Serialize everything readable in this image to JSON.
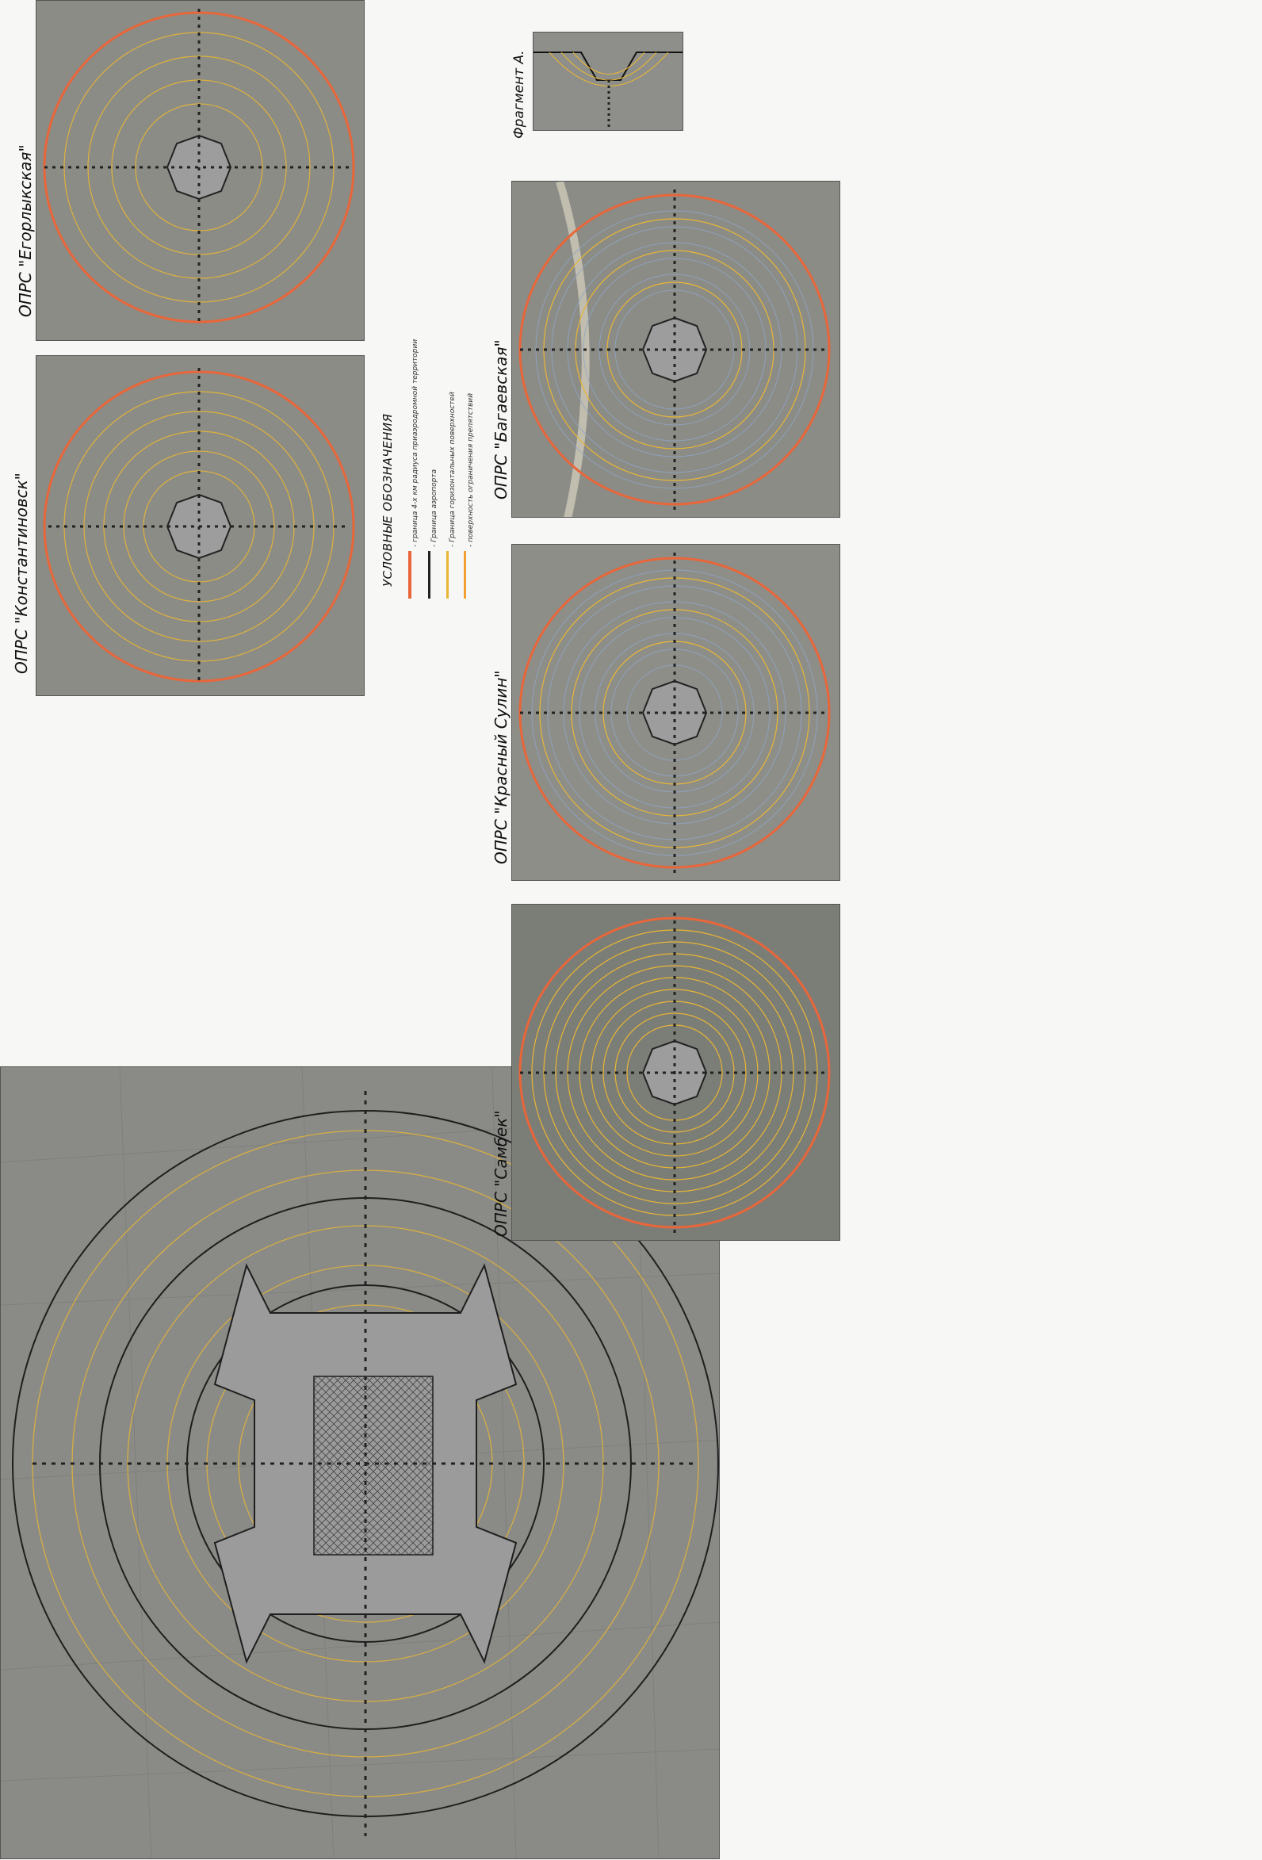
{
  "sheet": {
    "maps": [
      {
        "id": "egorlykskaya",
        "caption": "ОПРС \"Егорлыкская\""
      },
      {
        "id": "konstantinovsk",
        "caption": "ОПРС \"Константиновск\""
      },
      {
        "id": "bagaevskaya",
        "caption": "ОПРС \"Багаевская\""
      },
      {
        "id": "krasny-sulin",
        "caption": "ОПРС \"Красный Сулин\""
      },
      {
        "id": "sambek",
        "caption": "ОПРС \"Самбек\""
      }
    ],
    "fragment_caption": "Фрагмент А.",
    "legend": {
      "title": "УСЛОВНЫЕ ОБОЗНАЧЕНИЯ",
      "items": [
        {
          "label": "- граница 4-х км радиуса приаэродромной территории",
          "color": "#e8663a"
        },
        {
          "label": "- Граница аэропорта",
          "color": "#222222"
        },
        {
          "label": "- Граница горизонтальных поверхностей",
          "color": "#e9b634"
        },
        {
          "label": "- поверхность ограничения препятствий",
          "color": "#f0a030"
        }
      ]
    },
    "colors": {
      "outer_ring": "#e8663a",
      "ring_yellow": "#e9b634",
      "ring_orange": "#f0a030",
      "ring_blue": "#8fa6c8",
      "boundary": "#222222",
      "photo": "#8b8c86"
    }
  }
}
